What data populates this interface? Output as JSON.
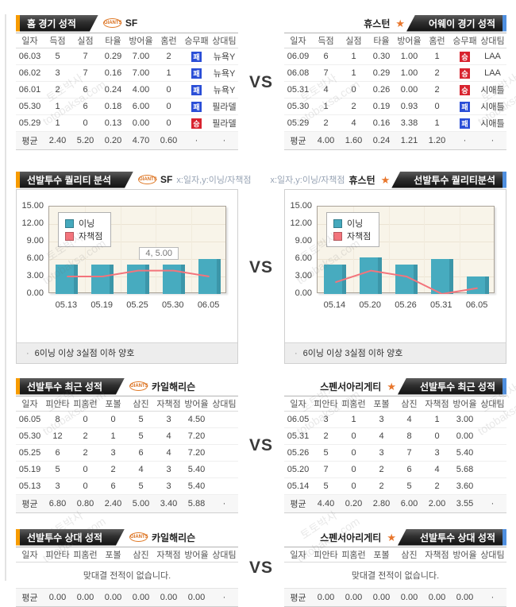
{
  "page": {
    "vs": "VS",
    "watermark_line1": "토토박사",
    "watermark_line2": "totobaksa.com"
  },
  "colors": {
    "banner_dark": "#2e2e2e",
    "accent_orange": "#f79b00",
    "accent_blue": "#4f8fdf",
    "badge_win_red": "#d8232f",
    "badge_loss_blue": "#2b4fd7",
    "bar_teal": "#45a9bd",
    "line_pink": "#f3747c",
    "plot_bg": "#f8f4e9"
  },
  "logos": {
    "giants_text": "GIANTS",
    "astros_text": "★"
  },
  "sections": [
    {
      "left": {
        "title": "홈 경기 성적",
        "team": "SF",
        "table": {
          "headers": [
            "일자",
            "득점",
            "실점",
            "타율",
            "방어율",
            "홈런",
            "승무패",
            "상대팀"
          ],
          "rows": [
            [
              "06.03",
              "5",
              "7",
              "0.29",
              "7.00",
              "2",
              "패",
              "뉴욕Y"
            ],
            [
              "06.02",
              "3",
              "7",
              "0.16",
              "7.00",
              "1",
              "패",
              "뉴욕Y"
            ],
            [
              "06.01",
              "2",
              "6",
              "0.24",
              "4.00",
              "0",
              "패",
              "뉴욕Y"
            ],
            [
              "05.30",
              "1",
              "6",
              "0.18",
              "6.00",
              "0",
              "패",
              "필라델"
            ],
            [
              "05.29",
              "1",
              "0",
              "0.13",
              "0.00",
              "0",
              "승",
              "필라델"
            ]
          ],
          "avg": [
            "평균",
            "2.40",
            "5.20",
            "0.20",
            "4.70",
            "0.60",
            "·",
            "·"
          ]
        }
      },
      "right": {
        "title": "어웨이 경기 성적",
        "team": "휴스턴",
        "table": {
          "headers": [
            "일자",
            "득점",
            "실점",
            "타율",
            "방어율",
            "홈런",
            "승무패",
            "상대팀"
          ],
          "rows": [
            [
              "06.09",
              "6",
              "1",
              "0.30",
              "1.00",
              "1",
              "승",
              "LAA"
            ],
            [
              "06.08",
              "7",
              "1",
              "0.29",
              "1.00",
              "2",
              "승",
              "LAA"
            ],
            [
              "05.31",
              "4",
              "0",
              "0.26",
              "0.00",
              "2",
              "승",
              "시애틀"
            ],
            [
              "05.30",
              "1",
              "2",
              "0.19",
              "0.93",
              "0",
              "패",
              "시애틀"
            ],
            [
              "05.29",
              "2",
              "4",
              "0.16",
              "3.38",
              "1",
              "패",
              "시애틀"
            ]
          ],
          "avg": [
            "평균",
            "4.00",
            "1.60",
            "0.24",
            "1.21",
            "1.20",
            "·",
            "·"
          ]
        }
      }
    },
    {
      "left": {
        "title": "선발투수 퀄리티 분석",
        "team": "SF",
        "axis_note": "x:일자,y:이닝/자책점",
        "note_bullet": "·",
        "note": "6이닝 이상 3실점 이하 양호"
      },
      "right": {
        "title": "선발투수 퀄리티분석",
        "team": "휴스턴",
        "axis_note": "x:일자,y:이닝/자책점",
        "note_bullet": "·",
        "note": "6이닝 이상 3실점 이하 양호"
      }
    },
    {
      "left": {
        "title": "선발투수 최근 성적",
        "team": "카일해리슨",
        "table": {
          "headers": [
            "일자",
            "피안타",
            "피홈런",
            "포볼",
            "삼진",
            "자책점",
            "방어율",
            "상대팀"
          ],
          "rows": [
            [
              "06.05",
              "8",
              "0",
              "0",
              "5",
              "3",
              "4.50",
              ""
            ],
            [
              "05.30",
              "12",
              "2",
              "1",
              "5",
              "4",
              "7.20",
              ""
            ],
            [
              "05.25",
              "6",
              "2",
              "3",
              "6",
              "4",
              "7.20",
              ""
            ],
            [
              "05.19",
              "5",
              "0",
              "2",
              "4",
              "3",
              "5.40",
              ""
            ],
            [
              "05.13",
              "3",
              "0",
              "6",
              "5",
              "3",
              "5.40",
              ""
            ]
          ],
          "avg": [
            "평균",
            "6.80",
            "0.80",
            "2.40",
            "5.00",
            "3.40",
            "5.88",
            "·"
          ]
        }
      },
      "right": {
        "title": "선발투수 최근 성적",
        "team": "스펜서아리게티",
        "table": {
          "headers": [
            "일자",
            "피안타",
            "피홈런",
            "포볼",
            "삼진",
            "자책점",
            "방어율",
            "상대팀"
          ],
          "rows": [
            [
              "06.05",
              "3",
              "1",
              "3",
              "4",
              "1",
              "3.00",
              ""
            ],
            [
              "05.31",
              "2",
              "0",
              "4",
              "8",
              "0",
              "0.00",
              ""
            ],
            [
              "05.26",
              "5",
              "0",
              "3",
              "7",
              "3",
              "5.40",
              ""
            ],
            [
              "05.20",
              "7",
              "0",
              "2",
              "6",
              "4",
              "5.68",
              ""
            ],
            [
              "05.14",
              "5",
              "0",
              "2",
              "5",
              "2",
              "3.60",
              ""
            ]
          ],
          "avg": [
            "평균",
            "4.40",
            "0.20",
            "2.80",
            "6.00",
            "2.00",
            "3.55",
            "·"
          ]
        }
      }
    },
    {
      "left": {
        "title": "선발투수 상대 성적",
        "team": "카일해리슨",
        "table": {
          "headers": [
            "일자",
            "피안타",
            "피홈런",
            "포볼",
            "삼진",
            "자책점",
            "방어율",
            "상대팀"
          ],
          "rows": [],
          "empty_message": "맞대결 전적이 없습니다.",
          "avg": [
            "평균",
            "0.00",
            "0.00",
            "0.00",
            "0.00",
            "0.00",
            "0.00",
            "·"
          ]
        }
      },
      "right": {
        "title": "선발투수 상대 성적",
        "team": "스펜서아리게티",
        "table": {
          "headers": [
            "일자",
            "피안타",
            "피홈런",
            "포볼",
            "삼진",
            "자책점",
            "방어율",
            "상대팀"
          ],
          "rows": [],
          "empty_message": "맞대결 전적이 없습니다.",
          "avg": [
            "평균",
            "0.00",
            "0.00",
            "0.00",
            "0.00",
            "0.00",
            "0.00",
            "·"
          ]
        }
      }
    }
  ],
  "chart_data": [
    {
      "type": "bar",
      "title": "선발투수 퀄리티 분석 SF",
      "x": [
        "05.13",
        "05.19",
        "05.25",
        "05.30",
        "06.05"
      ],
      "series": [
        {
          "name": "이닝",
          "type": "bar",
          "values": [
            5,
            5,
            5,
            5,
            6
          ]
        },
        {
          "name": "자책점",
          "type": "line",
          "values": [
            3,
            3,
            4,
            4,
            3
          ]
        }
      ],
      "ylim": [
        0,
        15
      ],
      "ytick": 3,
      "grid": true,
      "legend_position": "top-left",
      "tooltip": {
        "index": 3,
        "text": "4, 5.00"
      },
      "bar_color": "#45a9bd",
      "line_color": "#f3747c"
    },
    {
      "type": "bar",
      "title": "선발투수 퀄리티분석 휴스턴",
      "x": [
        "05.14",
        "05.20",
        "05.26",
        "05.31",
        "06.05"
      ],
      "series": [
        {
          "name": "이닝",
          "type": "bar",
          "values": [
            5,
            6.33,
            5,
            6,
            3
          ]
        },
        {
          "name": "자책점",
          "type": "line",
          "values": [
            2,
            4,
            3,
            0,
            1
          ]
        }
      ],
      "ylim": [
        0,
        15
      ],
      "ytick": 3,
      "grid": true,
      "legend_position": "top-left",
      "bar_color": "#45a9bd",
      "line_color": "#f3747c"
    }
  ]
}
